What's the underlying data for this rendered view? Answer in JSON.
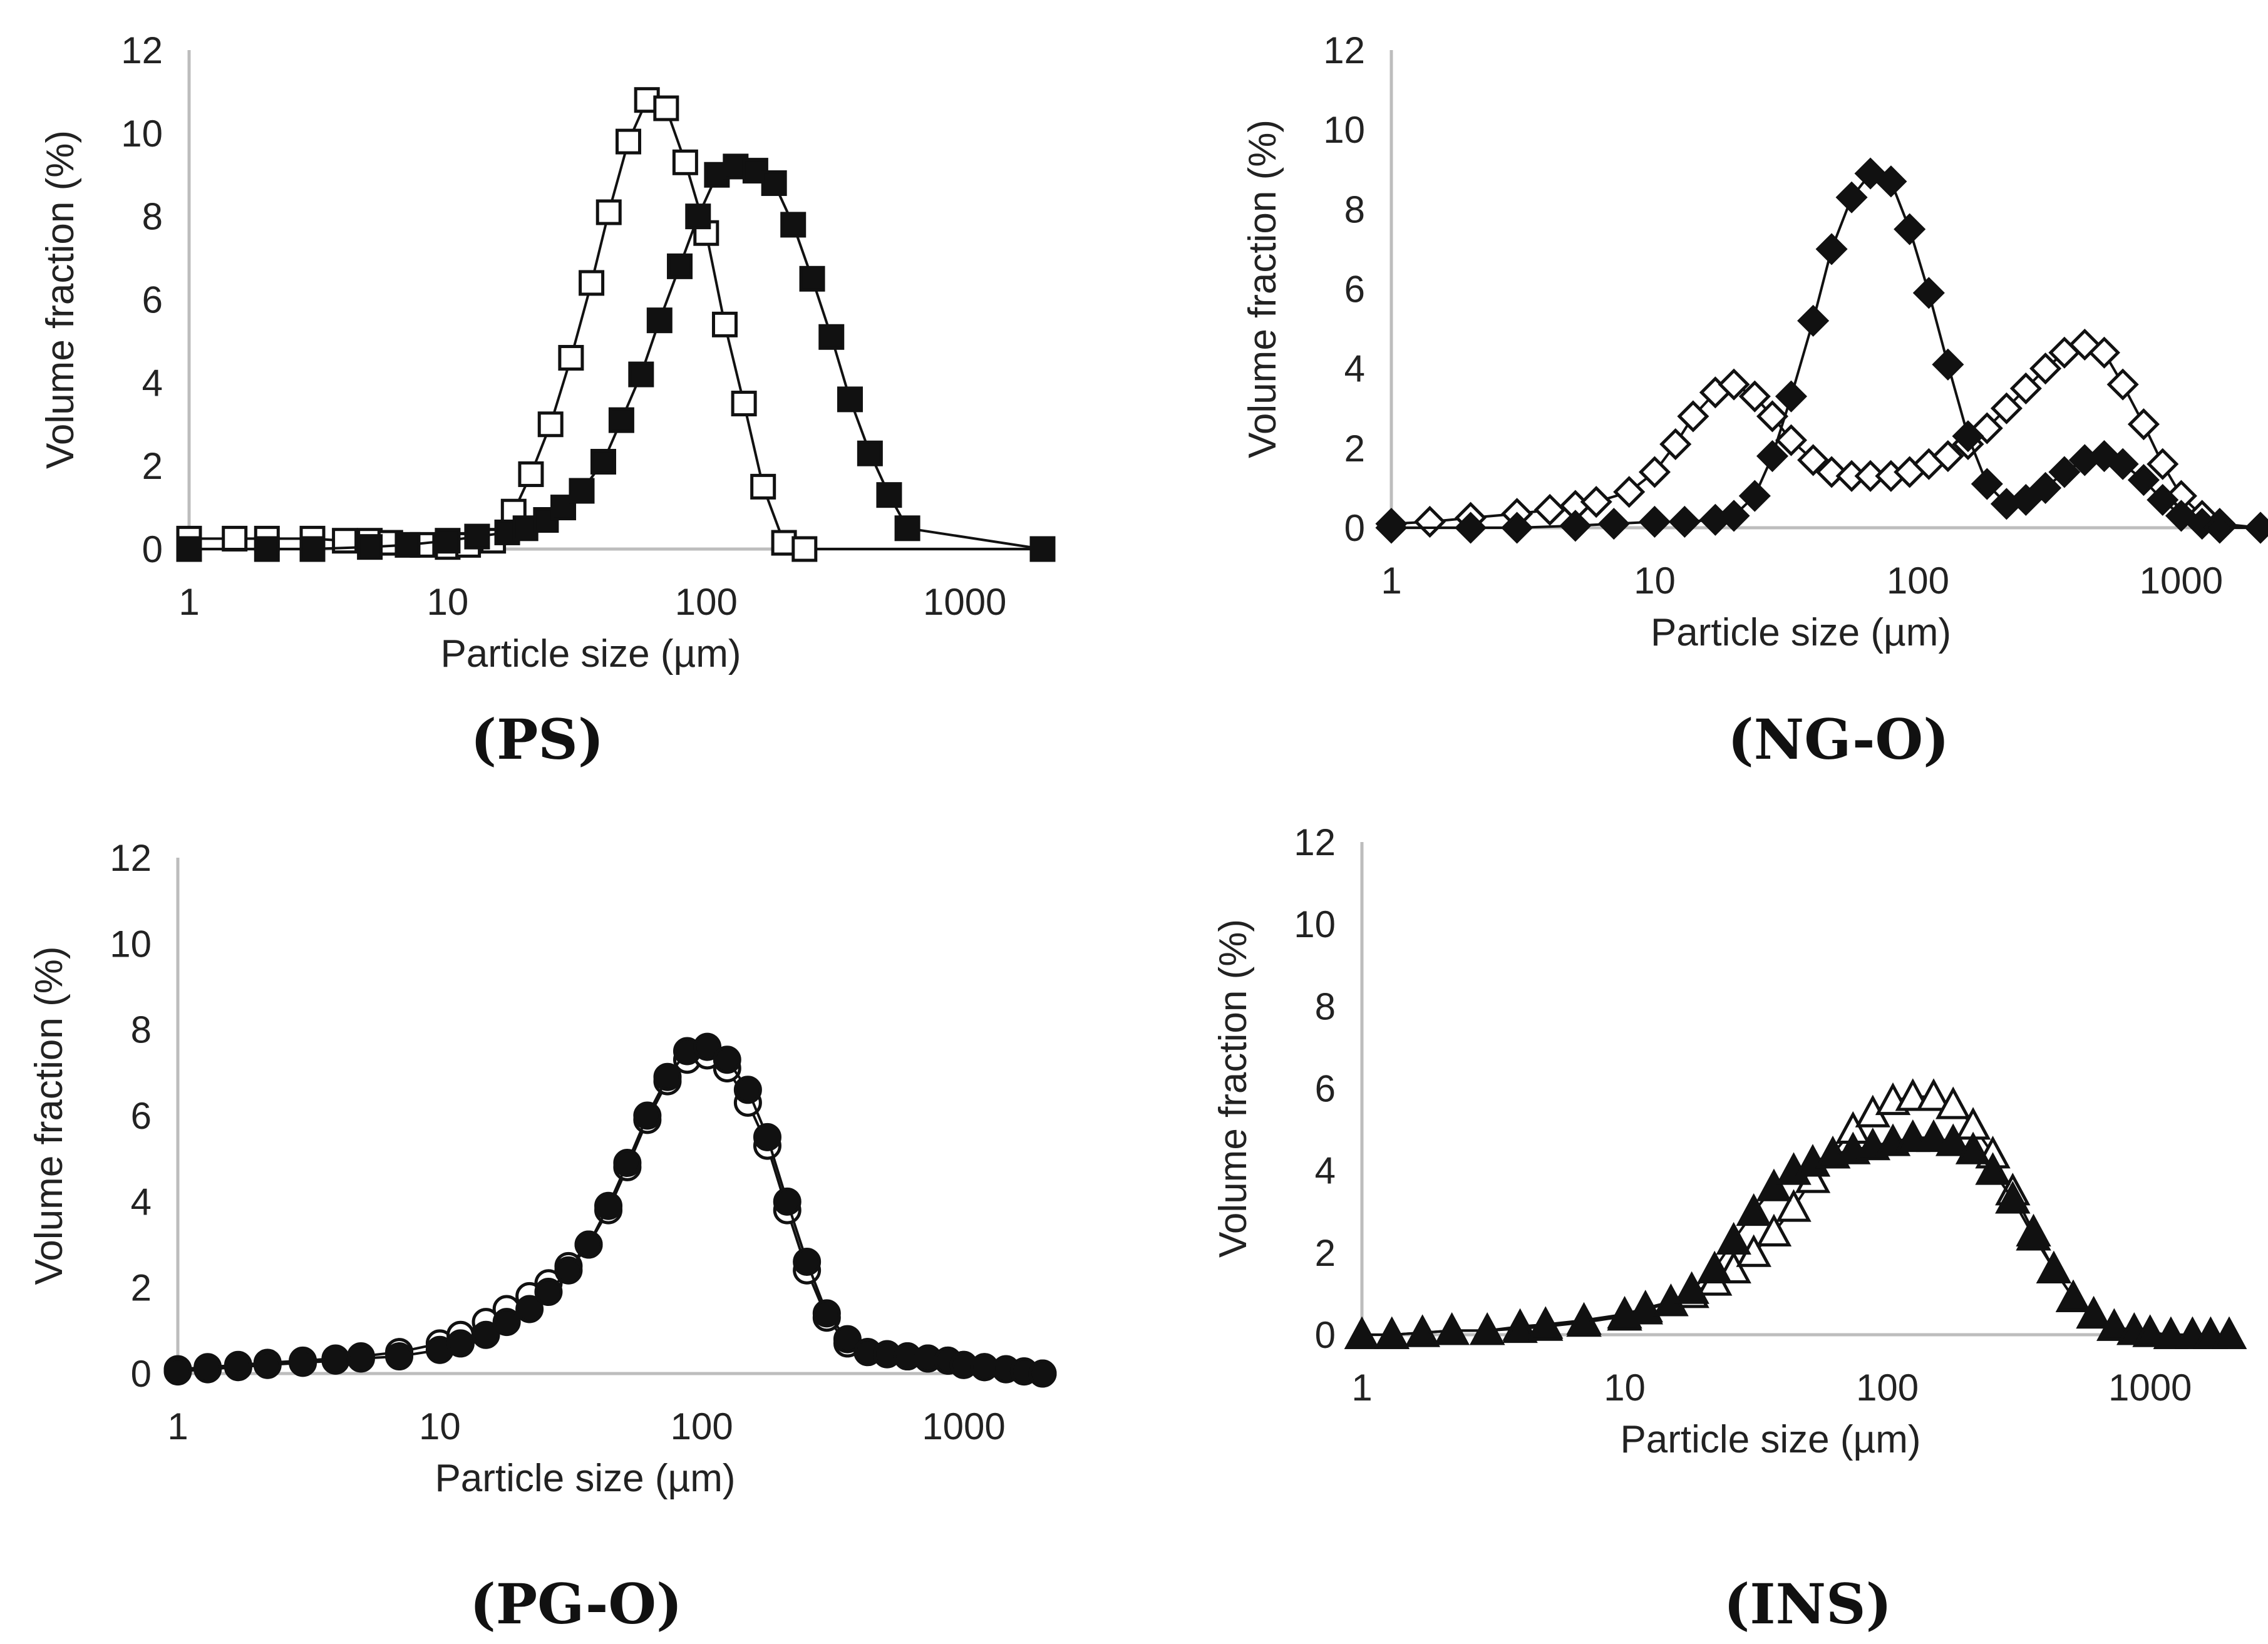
{
  "chart_data": [
    {
      "type": "scatter",
      "caption": "(PS)",
      "xlabel": "Particle size (µm)",
      "ylabel": "Volume fraction (%)",
      "x_scale": "log",
      "xlim": [
        1,
        2000
      ],
      "ylim": [
        0,
        12
      ],
      "x_ticks": [
        1,
        10,
        100,
        1000
      ],
      "y_ticks": [
        0,
        2,
        4,
        6,
        8,
        10,
        12
      ],
      "grid": false,
      "series": [
        {
          "marker": "square-open",
          "x": [
            1,
            1.5,
            2,
            3,
            4,
            5,
            6,
            8,
            10,
            12,
            15,
            18,
            21,
            25,
            30,
            36,
            42,
            50,
            59,
            70,
            83,
            100,
            118,
            140,
            166,
            200,
            240,
            2000
          ],
          "y": [
            0.25,
            0.25,
            0.25,
            0.25,
            0.2,
            0.2,
            0.15,
            0.1,
            0.05,
            0.1,
            0.2,
            0.9,
            1.8,
            3.0,
            4.6,
            6.4,
            8.1,
            9.8,
            10.8,
            10.6,
            9.3,
            7.6,
            5.4,
            3.5,
            1.5,
            0.15,
            0,
            0
          ]
        },
        {
          "marker": "square-filled",
          "x": [
            1,
            2,
            3,
            5,
            7,
            10,
            13,
            17,
            20,
            24,
            28,
            33,
            40,
            47,
            56,
            66,
            79,
            93,
            110,
            130,
            155,
            183,
            217,
            257,
            305,
            360,
            430,
            510,
            600,
            2000
          ],
          "y": [
            0,
            0,
            0,
            0.05,
            0.1,
            0.2,
            0.3,
            0.4,
            0.5,
            0.7,
            1.0,
            1.4,
            2.1,
            3.1,
            4.2,
            5.5,
            6.8,
            8.0,
            9.0,
            9.2,
            9.1,
            8.8,
            7.8,
            6.5,
            5.1,
            3.6,
            2.3,
            1.3,
            0.5,
            0
          ]
        }
      ]
    },
    {
      "type": "scatter",
      "caption": "(NG-O)",
      "xlabel": "Particle size (µm)",
      "ylabel": "Volume fraction (%)",
      "x_scale": "log",
      "xlim": [
        1,
        2000
      ],
      "ylim": [
        0,
        12
      ],
      "x_ticks": [
        1,
        10,
        100,
        1000
      ],
      "y_ticks": [
        0,
        2,
        4,
        6,
        8,
        10,
        12
      ],
      "grid": false,
      "series": [
        {
          "marker": "diamond-open",
          "x": [
            1,
            1.4,
            2,
            3,
            4,
            5,
            6,
            8,
            10,
            12,
            14,
            17,
            20,
            24,
            28,
            33,
            40,
            47,
            56,
            66,
            79,
            93,
            110,
            130,
            155,
            183,
            217,
            257,
            305,
            360,
            430,
            510,
            600,
            720,
            850,
            1000,
            1200,
            1400,
            2000
          ],
          "y": [
            0.1,
            0.15,
            0.25,
            0.35,
            0.45,
            0.55,
            0.65,
            0.9,
            1.4,
            2.1,
            2.8,
            3.4,
            3.6,
            3.3,
            2.8,
            2.2,
            1.7,
            1.4,
            1.3,
            1.3,
            1.3,
            1.4,
            1.6,
            1.8,
            2.1,
            2.5,
            3.0,
            3.5,
            4.0,
            4.4,
            4.6,
            4.4,
            3.6,
            2.6,
            1.6,
            0.8,
            0.3,
            0.1,
            0
          ]
        },
        {
          "marker": "diamond-filled",
          "x": [
            1,
            2,
            3,
            5,
            7,
            10,
            13,
            17,
            20,
            24,
            28,
            33,
            40,
            47,
            56,
            66,
            79,
            93,
            110,
            130,
            155,
            183,
            217,
            257,
            305,
            360,
            430,
            510,
            600,
            720,
            850,
            1000,
            1200,
            1400,
            2000
          ],
          "y": [
            0,
            0,
            0,
            0.05,
            0.1,
            0.15,
            0.15,
            0.2,
            0.3,
            0.8,
            1.8,
            3.3,
            5.2,
            7.0,
            8.3,
            8.9,
            8.7,
            7.5,
            5.9,
            4.1,
            2.3,
            1.1,
            0.6,
            0.7,
            1.0,
            1.4,
            1.7,
            1.8,
            1.6,
            1.2,
            0.7,
            0.3,
            0.1,
            0,
            0
          ]
        }
      ]
    },
    {
      "type": "scatter",
      "caption": "(PG-O)",
      "xlabel": "Particle size (µm)",
      "ylabel": "Volume fraction (%)",
      "x_scale": "log",
      "xlim": [
        1,
        2000
      ],
      "ylim": [
        0,
        12
      ],
      "x_ticks": [
        1,
        10,
        100,
        1000
      ],
      "y_ticks": [
        0,
        2,
        4,
        6,
        8,
        10,
        12
      ],
      "grid": false,
      "series": [
        {
          "marker": "circle-open",
          "x": [
            1,
            1.3,
            1.7,
            2.2,
            3,
            4,
            5,
            7,
            10,
            12,
            15,
            18,
            22,
            26,
            31,
            37,
            44,
            52,
            62,
            74,
            88,
            105,
            125,
            150,
            178,
            212,
            252,
            300,
            360,
            430,
            510,
            610,
            730,
            870,
            1000,
            1200,
            1450,
            1700,
            2000
          ],
          "y": [
            0.1,
            0.15,
            0.2,
            0.25,
            0.3,
            0.35,
            0.4,
            0.5,
            0.7,
            0.9,
            1.2,
            1.5,
            1.8,
            2.1,
            2.5,
            3.0,
            3.8,
            4.8,
            5.9,
            6.8,
            7.3,
            7.4,
            7.1,
            6.3,
            5.3,
            3.8,
            2.4,
            1.3,
            0.7,
            0.5,
            0.45,
            0.4,
            0.35,
            0.3,
            0.2,
            0.15,
            0.1,
            0.05,
            0
          ]
        },
        {
          "marker": "circle-filled",
          "x": [
            1,
            1.3,
            1.7,
            2.2,
            3,
            4,
            5,
            7,
            10,
            12,
            15,
            18,
            22,
            26,
            31,
            37,
            44,
            52,
            62,
            74,
            88,
            105,
            125,
            150,
            178,
            212,
            252,
            300,
            360,
            430,
            510,
            610,
            730,
            870,
            1000,
            1200,
            1450,
            1700,
            2000
          ],
          "y": [
            0.05,
            0.1,
            0.15,
            0.2,
            0.25,
            0.3,
            0.35,
            0.4,
            0.55,
            0.7,
            0.9,
            1.2,
            1.5,
            1.9,
            2.4,
            3.0,
            3.9,
            4.9,
            6.0,
            6.9,
            7.5,
            7.6,
            7.3,
            6.6,
            5.5,
            4.0,
            2.6,
            1.4,
            0.8,
            0.5,
            0.45,
            0.4,
            0.35,
            0.3,
            0.2,
            0.15,
            0.1,
            0.05,
            0
          ]
        }
      ]
    },
    {
      "type": "scatter",
      "caption": "(INS)",
      "xlabel": "Particle size (µm)",
      "ylabel": "Volume fraction (%)",
      "x_scale": "log",
      "xlim": [
        1,
        2000
      ],
      "ylim": [
        0,
        12
      ],
      "x_ticks": [
        1,
        10,
        100,
        1000
      ],
      "y_ticks": [
        0,
        2,
        4,
        6,
        8,
        10,
        12
      ],
      "grid": false,
      "series": [
        {
          "marker": "triangle-open",
          "x": [
            1,
            1.3,
            1.7,
            2.2,
            3,
            4,
            5,
            7,
            10,
            12,
            15,
            18,
            22,
            26,
            31,
            37,
            44,
            52,
            62,
            74,
            88,
            105,
            125,
            150,
            178,
            212,
            252,
            300,
            360,
            430,
            510,
            610,
            730,
            870,
            1000,
            1200,
            1450,
            1700,
            2000
          ],
          "y": [
            0,
            0,
            0.05,
            0.1,
            0.1,
            0.2,
            0.25,
            0.35,
            0.5,
            0.65,
            0.8,
            1.0,
            1.3,
            1.6,
            2.0,
            2.5,
            3.1,
            3.8,
            4.4,
            5.0,
            5.4,
            5.7,
            5.8,
            5.8,
            5.6,
            5.1,
            4.4,
            3.5,
            2.5,
            1.6,
            0.9,
            0.5,
            0.2,
            0.1,
            0.05,
            0,
            0,
            0,
            0
          ]
        },
        {
          "marker": "triangle-filled",
          "x": [
            1,
            1.3,
            1.7,
            2.2,
            3,
            4,
            5,
            7,
            10,
            12,
            15,
            18,
            22,
            26,
            31,
            37,
            44,
            52,
            62,
            74,
            88,
            105,
            125,
            150,
            178,
            212,
            252,
            300,
            360,
            430,
            510,
            610,
            730,
            870,
            1000,
            1200,
            1450,
            1700,
            2000
          ],
          "y": [
            0,
            0,
            0.05,
            0.1,
            0.1,
            0.15,
            0.2,
            0.3,
            0.45,
            0.6,
            0.8,
            1.1,
            1.6,
            2.3,
            3.0,
            3.6,
            4.0,
            4.2,
            4.4,
            4.5,
            4.6,
            4.7,
            4.8,
            4.8,
            4.7,
            4.5,
            4.0,
            3.3,
            2.4,
            1.6,
            0.9,
            0.5,
            0.2,
            0.1,
            0.05,
            0,
            0,
            0,
            0
          ]
        }
      ]
    }
  ]
}
